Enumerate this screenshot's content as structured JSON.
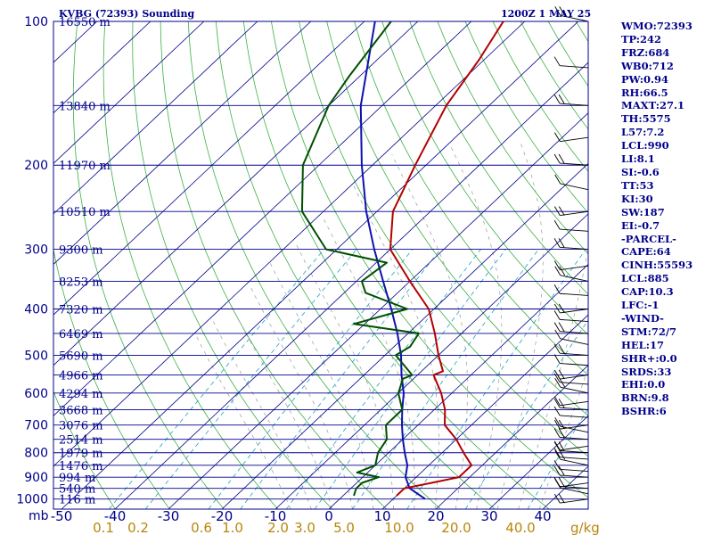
{
  "chart_data": {
    "type": "skew-t sounding",
    "title": "KVBG (72393) Sounding",
    "valid_time": "1200Z  1 MAY 25",
    "pressure_unit_label": "mb",
    "temperature_ticks": [
      "-50",
      "-40",
      "-30",
      "-20",
      "-10",
      "0",
      "10",
      "20",
      "30",
      "40"
    ],
    "mixing_ratio_unit_label": "g/kg",
    "mixing_ratio_ticks": [
      "0.1",
      "0.2",
      "0.6",
      "1.0",
      "2.0",
      "3.0",
      "5.0",
      "10.0",
      "20.0",
      "40.0"
    ],
    "pressure_ticks": [
      "100",
      "200",
      "300",
      "400",
      "500",
      "600",
      "700",
      "800",
      "900",
      "1000"
    ],
    "height_labels": [
      {
        "p": 100,
        "text": "16550 m"
      },
      {
        "p": 150,
        "text": "13840 m"
      },
      {
        "p": 200,
        "text": "11970 m"
      },
      {
        "p": 250,
        "text": "10510 m"
      },
      {
        "p": 300,
        "text": "9300 m"
      },
      {
        "p": 350,
        "text": "8253 m"
      },
      {
        "p": 400,
        "text": "7320 m"
      },
      {
        "p": 450,
        "text": "6469 m"
      },
      {
        "p": 500,
        "text": "5690 m"
      },
      {
        "p": 550,
        "text": "4966 m"
      },
      {
        "p": 600,
        "text": "4294 m"
      },
      {
        "p": 650,
        "text": "3668 m"
      },
      {
        "p": 700,
        "text": "3076 m"
      },
      {
        "p": 750,
        "text": "2514 m"
      },
      {
        "p": 800,
        "text": "1979 m"
      },
      {
        "p": 850,
        "text": "1476 m"
      },
      {
        "p": 900,
        "text": "994 m"
      },
      {
        "p": 950,
        "text": "540 m"
      },
      {
        "p": 1000,
        "text": "116 m"
      }
    ],
    "temperature_profile": [
      [
        984,
        10
      ],
      [
        950,
        10
      ],
      [
        925,
        14
      ],
      [
        900,
        18
      ],
      [
        850,
        18
      ],
      [
        800,
        14
      ],
      [
        750,
        10
      ],
      [
        700,
        5
      ],
      [
        650,
        2
      ],
      [
        600,
        -2
      ],
      [
        550,
        -7
      ],
      [
        540,
        -6
      ],
      [
        500,
        -10
      ],
      [
        450,
        -15
      ],
      [
        400,
        -21
      ],
      [
        350,
        -30
      ],
      [
        300,
        -40
      ],
      [
        250,
        -47
      ],
      [
        200,
        -52
      ],
      [
        150,
        -58
      ],
      [
        120,
        -61
      ],
      [
        100,
        -64
      ]
    ],
    "dewpoint_profile": [
      [
        984,
        2
      ],
      [
        950,
        1
      ],
      [
        925,
        1
      ],
      [
        900,
        3
      ],
      [
        880,
        -2
      ],
      [
        850,
        0
      ],
      [
        800,
        -2
      ],
      [
        750,
        -3
      ],
      [
        700,
        -6
      ],
      [
        650,
        -6
      ],
      [
        600,
        -10
      ],
      [
        560,
        -12
      ],
      [
        550,
        -11
      ],
      [
        500,
        -18
      ],
      [
        480,
        -17
      ],
      [
        450,
        -18
      ],
      [
        430,
        -32
      ],
      [
        400,
        -25
      ],
      [
        370,
        -36
      ],
      [
        350,
        -39
      ],
      [
        320,
        -38
      ],
      [
        300,
        -52
      ],
      [
        250,
        -64
      ],
      [
        200,
        -73
      ],
      [
        150,
        -80
      ],
      [
        130,
        -82
      ],
      [
        100,
        -85
      ]
    ],
    "parcel_profile": [
      [
        1000,
        16
      ],
      [
        950,
        11
      ],
      [
        900,
        8
      ],
      [
        850,
        6
      ],
      [
        800,
        3
      ],
      [
        750,
        0
      ],
      [
        700,
        -3
      ],
      [
        650,
        -6
      ],
      [
        600,
        -9
      ],
      [
        550,
        -13
      ],
      [
        500,
        -17
      ],
      [
        450,
        -22
      ],
      [
        400,
        -28
      ],
      [
        350,
        -35
      ],
      [
        300,
        -43
      ],
      [
        250,
        -52
      ],
      [
        200,
        -62
      ],
      [
        150,
        -74
      ],
      [
        100,
        -88
      ]
    ],
    "wind_barbs_shown": true,
    "grid": true
  },
  "indices": [
    "WMO:72393",
    "TP:242",
    "FRZ:684",
    "WB0:712",
    "PW:0.94",
    "RH:66.5",
    "MAXT:27.1",
    "TH:5575",
    "L57:7.2",
    "LCL:990",
    "LI:8.1",
    "SI:-0.6",
    "TT:53",
    "KI:30",
    "SW:187",
    "EI:-0.7",
    "-PARCEL-",
    "CAPE:64",
    "CINH:55593",
    "LCL:885",
    "CAP:10.3",
    "LFC:-1",
    "-WIND-",
    "STM:72/7",
    "HEL:17",
    "SHR+:0.0",
    "SRDS:33",
    "EHI:0.0",
    "BRN:9.8",
    "BSHR:6"
  ],
  "colors": {
    "isobar": "#00008b",
    "isotherm": "#00008b",
    "dry_adiabat": "#3cb043",
    "moist_adiabat": "#999999",
    "mixing_ratio": "#20a0c8",
    "temperature": "#b40000",
    "dewpoint": "#005000",
    "parcel": "#1010b0",
    "text": "#00008b",
    "mixing_ratio_text": "#b8860b"
  }
}
